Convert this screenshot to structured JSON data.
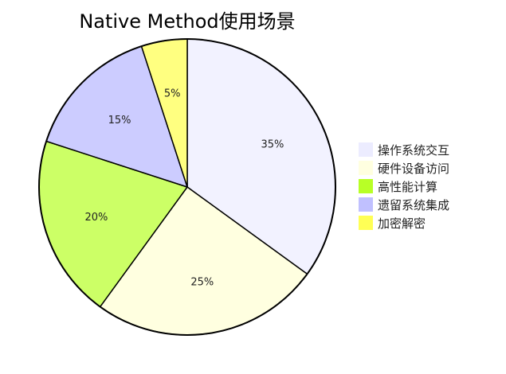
{
  "chart_data": {
    "type": "pie",
    "title": "Native Method使用场景",
    "categories": [
      "操作系统交互",
      "硬件设备访问",
      "高性能计算",
      "遗留系统集成",
      "加密解密"
    ],
    "values": [
      35,
      25,
      20,
      15,
      5
    ],
    "value_labels": [
      "35%",
      "25%",
      "20%",
      "15%",
      "5%"
    ],
    "slice_colors": [
      "#f2f2ff",
      "#ffffe0",
      "#ccff66",
      "#ccccff",
      "#ffff80"
    ],
    "legend_colors": [
      "#ececff",
      "#ffffe0",
      "#b8ff26",
      "#c0c0ff",
      "#ffff55"
    ],
    "start_angle": "12 o'clock",
    "direction": "clockwise",
    "legend_position": "right"
  }
}
